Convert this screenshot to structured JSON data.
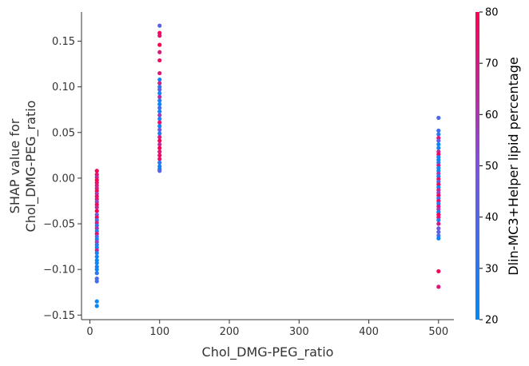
{
  "chart_data": {
    "type": "scatter",
    "title": "",
    "xlabel": "Chol_DMG-PEG_ratio",
    "ylabel_lines": [
      "SHAP value for",
      "Chol_DMG-PEG_ratio"
    ],
    "xlim": [
      -12,
      522
    ],
    "ylim": [
      -0.155,
      0.182
    ],
    "x_ticks": [
      0,
      100,
      200,
      300,
      400,
      500
    ],
    "x_tick_labels": [
      "0",
      "100",
      "200",
      "300",
      "400",
      "500"
    ],
    "y_ticks": [
      -0.15,
      -0.1,
      -0.05,
      0.0,
      0.05,
      0.1,
      0.15
    ],
    "y_tick_labels": [
      "−0.15",
      "−0.10",
      "−0.05",
      "0.00",
      "0.05",
      "0.10",
      "0.15"
    ],
    "grid": false,
    "colorbar": {
      "label": "Dlin-MC3+Helper lipid percentage",
      "range": [
        20,
        80
      ],
      "ticks": [
        20,
        30,
        40,
        50,
        60,
        70,
        80
      ],
      "tick_labels": [
        "20",
        "30",
        "40",
        "50",
        "60",
        "70",
        "80"
      ],
      "color_low": "#008afb",
      "color_high": "#ff0052"
    },
    "points": [
      {
        "x": 10,
        "y": 0.008,
        "c": 78
      },
      {
        "x": 10,
        "y": 0.004,
        "c": 74
      },
      {
        "x": 10,
        "y": 0.001,
        "c": 65
      },
      {
        "x": 10,
        "y": -0.002,
        "c": 80
      },
      {
        "x": 10,
        "y": -0.005,
        "c": 76
      },
      {
        "x": 10,
        "y": -0.008,
        "c": 70
      },
      {
        "x": 10,
        "y": -0.011,
        "c": 68
      },
      {
        "x": 10,
        "y": -0.014,
        "c": 79
      },
      {
        "x": 10,
        "y": -0.017,
        "c": 60
      },
      {
        "x": 10,
        "y": -0.02,
        "c": 75
      },
      {
        "x": 10,
        "y": -0.023,
        "c": 72
      },
      {
        "x": 10,
        "y": -0.026,
        "c": 55
      },
      {
        "x": 10,
        "y": -0.029,
        "c": 78
      },
      {
        "x": 10,
        "y": -0.032,
        "c": 66
      },
      {
        "x": 10,
        "y": -0.036,
        "c": 80
      },
      {
        "x": 10,
        "y": -0.04,
        "c": 45
      },
      {
        "x": 10,
        "y": -0.043,
        "c": 77
      },
      {
        "x": 10,
        "y": -0.046,
        "c": 35
      },
      {
        "x": 10,
        "y": -0.049,
        "c": 70
      },
      {
        "x": 10,
        "y": -0.052,
        "c": 30
      },
      {
        "x": 10,
        "y": -0.055,
        "c": 62
      },
      {
        "x": 10,
        "y": -0.058,
        "c": 28
      },
      {
        "x": 10,
        "y": -0.061,
        "c": 74
      },
      {
        "x": 10,
        "y": -0.064,
        "c": 40
      },
      {
        "x": 10,
        "y": -0.067,
        "c": 25
      },
      {
        "x": 10,
        "y": -0.07,
        "c": 58
      },
      {
        "x": 10,
        "y": -0.073,
        "c": 33
      },
      {
        "x": 10,
        "y": -0.076,
        "c": 22
      },
      {
        "x": 10,
        "y": -0.079,
        "c": 68
      },
      {
        "x": 10,
        "y": -0.082,
        "c": 26
      },
      {
        "x": 10,
        "y": -0.086,
        "c": 24
      },
      {
        "x": 10,
        "y": -0.09,
        "c": 21
      },
      {
        "x": 10,
        "y": -0.093,
        "c": 23
      },
      {
        "x": 10,
        "y": -0.097,
        "c": 27
      },
      {
        "x": 10,
        "y": -0.1,
        "c": 22
      },
      {
        "x": 10,
        "y": -0.104,
        "c": 30
      },
      {
        "x": 10,
        "y": -0.11,
        "c": 38
      },
      {
        "x": 10,
        "y": -0.113,
        "c": 36
      },
      {
        "x": 10,
        "y": -0.135,
        "c": 22
      },
      {
        "x": 10,
        "y": -0.14,
        "c": 21
      },
      {
        "x": 100,
        "y": 0.167,
        "c": 42
      },
      {
        "x": 100,
        "y": 0.159,
        "c": 78
      },
      {
        "x": 100,
        "y": 0.156,
        "c": 74
      },
      {
        "x": 100,
        "y": 0.146,
        "c": 80
      },
      {
        "x": 100,
        "y": 0.138,
        "c": 70
      },
      {
        "x": 100,
        "y": 0.129,
        "c": 76
      },
      {
        "x": 100,
        "y": 0.115,
        "c": 72
      },
      {
        "x": 100,
        "y": 0.108,
        "c": 25
      },
      {
        "x": 100,
        "y": 0.104,
        "c": 68
      },
      {
        "x": 100,
        "y": 0.1,
        "c": 30
      },
      {
        "x": 100,
        "y": 0.097,
        "c": 40
      },
      {
        "x": 100,
        "y": 0.093,
        "c": 22
      },
      {
        "x": 100,
        "y": 0.089,
        "c": 64
      },
      {
        "x": 100,
        "y": 0.085,
        "c": 28
      },
      {
        "x": 100,
        "y": 0.081,
        "c": 21
      },
      {
        "x": 100,
        "y": 0.077,
        "c": 35
      },
      {
        "x": 100,
        "y": 0.073,
        "c": 24
      },
      {
        "x": 100,
        "y": 0.069,
        "c": 58
      },
      {
        "x": 100,
        "y": 0.065,
        "c": 26
      },
      {
        "x": 100,
        "y": 0.061,
        "c": 75
      },
      {
        "x": 100,
        "y": 0.057,
        "c": 23
      },
      {
        "x": 100,
        "y": 0.053,
        "c": 45
      },
      {
        "x": 100,
        "y": 0.049,
        "c": 27
      },
      {
        "x": 100,
        "y": 0.045,
        "c": 70
      },
      {
        "x": 100,
        "y": 0.041,
        "c": 78
      },
      {
        "x": 100,
        "y": 0.037,
        "c": 66
      },
      {
        "x": 100,
        "y": 0.033,
        "c": 80
      },
      {
        "x": 100,
        "y": 0.029,
        "c": 72
      },
      {
        "x": 100,
        "y": 0.025,
        "c": 76
      },
      {
        "x": 100,
        "y": 0.021,
        "c": 74
      },
      {
        "x": 100,
        "y": 0.017,
        "c": 30
      },
      {
        "x": 100,
        "y": 0.013,
        "c": 25
      },
      {
        "x": 100,
        "y": 0.01,
        "c": 22
      },
      {
        "x": 100,
        "y": 0.008,
        "c": 40
      },
      {
        "x": 500,
        "y": 0.066,
        "c": 38
      },
      {
        "x": 500,
        "y": 0.052,
        "c": 34
      },
      {
        "x": 500,
        "y": 0.048,
        "c": 30
      },
      {
        "x": 500,
        "y": 0.044,
        "c": 72
      },
      {
        "x": 500,
        "y": 0.041,
        "c": 45
      },
      {
        "x": 500,
        "y": 0.037,
        "c": 22
      },
      {
        "x": 500,
        "y": 0.033,
        "c": 24
      },
      {
        "x": 500,
        "y": 0.029,
        "c": 66
      },
      {
        "x": 500,
        "y": 0.026,
        "c": 78
      },
      {
        "x": 500,
        "y": 0.023,
        "c": 28
      },
      {
        "x": 500,
        "y": 0.02,
        "c": 21
      },
      {
        "x": 500,
        "y": 0.017,
        "c": 30
      },
      {
        "x": 500,
        "y": 0.014,
        "c": 70
      },
      {
        "x": 500,
        "y": 0.011,
        "c": 25
      },
      {
        "x": 500,
        "y": 0.008,
        "c": 23
      },
      {
        "x": 500,
        "y": 0.005,
        "c": 62
      },
      {
        "x": 500,
        "y": 0.002,
        "c": 26
      },
      {
        "x": 500,
        "y": -0.001,
        "c": 74
      },
      {
        "x": 500,
        "y": -0.004,
        "c": 40
      },
      {
        "x": 500,
        "y": -0.007,
        "c": 78
      },
      {
        "x": 500,
        "y": -0.01,
        "c": 22
      },
      {
        "x": 500,
        "y": -0.013,
        "c": 68
      },
      {
        "x": 500,
        "y": -0.016,
        "c": 55
      },
      {
        "x": 500,
        "y": -0.019,
        "c": 80
      },
      {
        "x": 500,
        "y": -0.022,
        "c": 35
      },
      {
        "x": 500,
        "y": -0.025,
        "c": 76
      },
      {
        "x": 500,
        "y": -0.028,
        "c": 27
      },
      {
        "x": 500,
        "y": -0.031,
        "c": 72
      },
      {
        "x": 500,
        "y": -0.034,
        "c": 60
      },
      {
        "x": 500,
        "y": -0.037,
        "c": 24
      },
      {
        "x": 500,
        "y": -0.04,
        "c": 79
      },
      {
        "x": 500,
        "y": -0.043,
        "c": 74
      },
      {
        "x": 500,
        "y": -0.046,
        "c": 30
      },
      {
        "x": 500,
        "y": -0.05,
        "c": 70
      },
      {
        "x": 500,
        "y": -0.055,
        "c": 46
      },
      {
        "x": 500,
        "y": -0.059,
        "c": 42
      },
      {
        "x": 500,
        "y": -0.063,
        "c": 38
      },
      {
        "x": 500,
        "y": -0.066,
        "c": 22
      },
      {
        "x": 500,
        "y": -0.102,
        "c": 78
      },
      {
        "x": 500,
        "y": -0.119,
        "c": 72
      }
    ]
  }
}
